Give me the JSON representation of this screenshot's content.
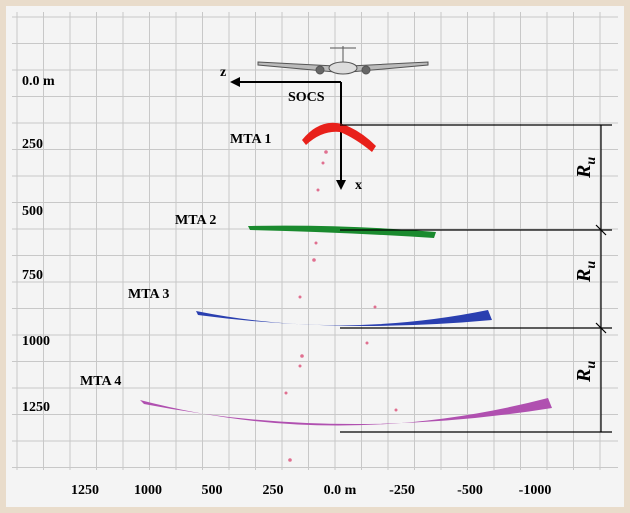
{
  "y_axis_labels": [
    "0.0 m",
    "250",
    "500",
    "750",
    "1000",
    "1250"
  ],
  "x_axis_labels": [
    "1250",
    "1000",
    "500",
    "250",
    "0.0 m",
    "-250",
    "-500",
    "-1000"
  ],
  "frame": {
    "z": "z",
    "x": "x",
    "origin": "SOCS"
  },
  "zones": [
    {
      "label": "MTA 1"
    },
    {
      "label": "MTA 2"
    },
    {
      "label": "MTA 3"
    },
    {
      "label": "MTA 4"
    }
  ],
  "ranges": [
    {
      "symbol": "R",
      "subscript": "u"
    },
    {
      "symbol": "R",
      "subscript": "u"
    },
    {
      "symbol": "R",
      "subscript": "u"
    }
  ]
}
